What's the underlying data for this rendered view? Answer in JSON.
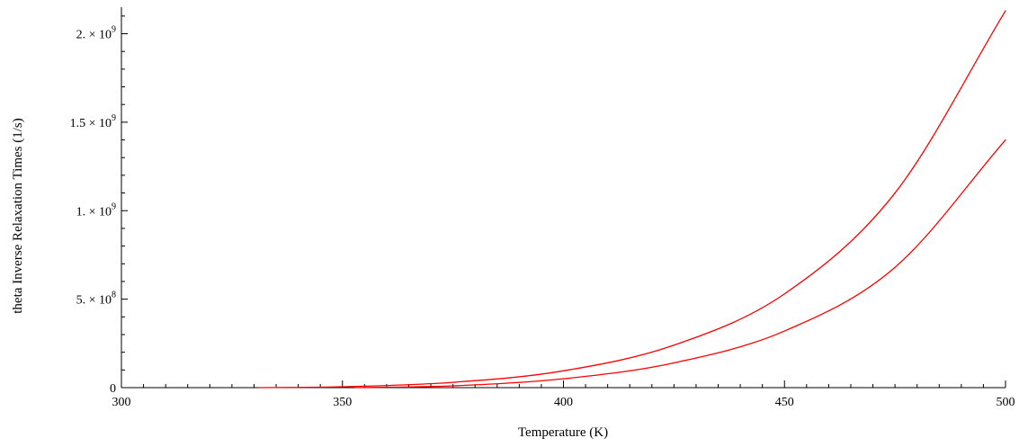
{
  "chart_data": {
    "type": "line",
    "title": "",
    "xlabel": "Temperature (K)",
    "ylabel": "theta Inverse Relaxation Times (1/s)",
    "xlim": [
      300,
      500
    ],
    "ylim": [
      0,
      2150000000
    ],
    "grid": false,
    "x_ticks": [
      {
        "value": 300,
        "label": "300"
      },
      {
        "value": 350,
        "label": "350"
      },
      {
        "value": 400,
        "label": "400"
      },
      {
        "value": 450,
        "label": "450"
      },
      {
        "value": 500,
        "label": "500"
      }
    ],
    "y_ticks": [
      {
        "value": 0,
        "mant": "0",
        "exp": ""
      },
      {
        "value": 500000000,
        "mant": "5. × 10",
        "exp": "8"
      },
      {
        "value": 1000000000,
        "mant": "1. × 10",
        "exp": "9"
      },
      {
        "value": 1500000000,
        "mant": "1.5 × 10",
        "exp": "9"
      },
      {
        "value": 2000000000,
        "mant": "2. × 10",
        "exp": "9"
      }
    ],
    "series": [
      {
        "color": "#ff0000",
        "x": [
          331,
          350,
          375,
          400,
          425,
          450,
          475,
          500
        ],
        "y": [
          0,
          5000000,
          30000000,
          95000000,
          240000000,
          530000000,
          1100000000,
          2130000000
        ]
      },
      {
        "color": "#ff0000",
        "x": [
          353,
          375,
          400,
          425,
          450,
          475,
          500
        ],
        "y": [
          0,
          10000000,
          50000000,
          140000000,
          320000000,
          680000000,
          1400000000
        ]
      }
    ]
  }
}
